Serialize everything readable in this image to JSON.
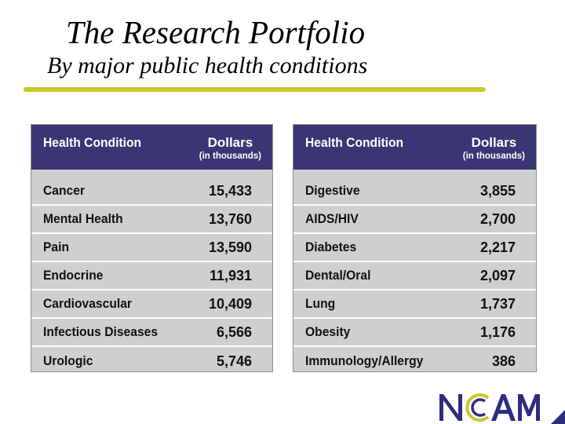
{
  "title": "The Research Portfolio",
  "subtitle": "By major public health conditions",
  "table_header": {
    "condition": "Health Condition",
    "dollars": "Dollars",
    "left_unit": "(in thousands)",
    "right_unit": "(in thousands)"
  },
  "left_rows": [
    {
      "name": "Cancer",
      "value": "15,433"
    },
    {
      "name": "Mental Health",
      "value": "13,760"
    },
    {
      "name": "Pain",
      "value": "13,590"
    },
    {
      "name": "Endocrine",
      "value": "11,931"
    },
    {
      "name": "Cardiovascular",
      "value": "10,409"
    },
    {
      "name": "Infectious Diseases",
      "value": "6,566"
    },
    {
      "name": "Urologic",
      "value": "5,746"
    }
  ],
  "right_rows": [
    {
      "name": "Digestive",
      "value": "3,855"
    },
    {
      "name": "AIDS/HIV",
      "value": "2,700"
    },
    {
      "name": "Diabetes",
      "value": "2,217"
    },
    {
      "name": "Dental/Oral",
      "value": "2,097"
    },
    {
      "name": "Lung",
      "value": "1,737"
    },
    {
      "name": "Obesity",
      "value": "1,176"
    },
    {
      "name": "Immunology/Allergy",
      "value": "386"
    }
  ],
  "logo": {
    "text": "NCCAM",
    "colors": {
      "letters": "#2d2e7f",
      "accent": "#c9c82a",
      "corner": "#2d2e7f"
    }
  },
  "colors": {
    "header": "#3a3574",
    "row": "#cfcfd1",
    "rule": "#c9c82a"
  }
}
